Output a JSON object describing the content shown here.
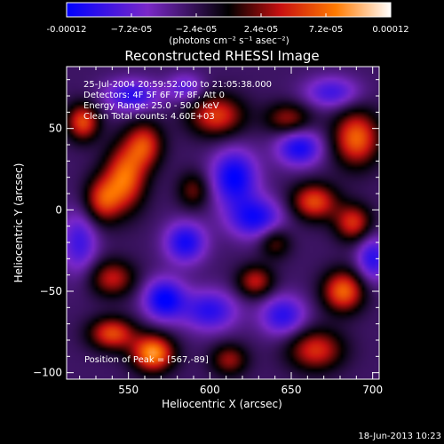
{
  "colorbar": {
    "tick_labels": [
      "-0.00012",
      "−7.2e-05",
      "−2.4e-05",
      "2.4e-05",
      "7.2e-05",
      "0.00012"
    ],
    "tick_values": [
      -0.00012,
      -7.2e-05,
      -2.4e-05,
      2.4e-05,
      7.2e-05,
      0.00012
    ],
    "range": [
      -0.00012,
      0.00012
    ],
    "unit_label": "(photons cm⁻² s⁻¹ asec⁻²)",
    "colormap": [
      "#0000ff",
      "#7a28c8",
      "#000000",
      "#c81010",
      "#ff7a00",
      "#ffffff"
    ]
  },
  "chart_data": {
    "type": "heatmap",
    "title": "Reconstructed RHESSI Image",
    "xlabel": "Heliocentric X (arcsec)",
    "ylabel": "Heliocentric Y (arcsec)",
    "xlim": [
      512,
      704
    ],
    "ylim": [
      -104,
      88
    ],
    "x_ticks": [
      550,
      600,
      650,
      700
    ],
    "y_ticks": [
      -100,
      -50,
      0,
      50
    ],
    "x_tick_labels": [
      "550",
      "600",
      "650",
      "700"
    ],
    "y_tick_labels": [
      "−100",
      "−50",
      "0",
      "50"
    ],
    "annotations": [
      "25-Jul-2004 20:59:52.000 to 21:05:38.000",
      "Detectors: 4F 5F 6F 7F 8F, Att 0",
      "Energy Range: 25.0 - 50.0 keV",
      "Clean    Total counts: 4.60E+03"
    ],
    "peak_label": "Position of Peak = [567,-89]",
    "peak": [
      567,
      -89
    ],
    "blobs": [
      {
        "x": 565,
        "y": -88,
        "sx": 9,
        "sy": 8,
        "v": 0.000118
      },
      {
        "x": 540,
        "y": -76,
        "sx": 10,
        "sy": 7,
        "v": 9e-05
      },
      {
        "x": 548,
        "y": 20,
        "sx": 9,
        "sy": 14,
        "v": 0.0001
      },
      {
        "x": 560,
        "y": 40,
        "sx": 8,
        "sy": 10,
        "v": 8e-05
      },
      {
        "x": 534,
        "y": 6,
        "sx": 8,
        "sy": 10,
        "v": 8e-05
      },
      {
        "x": 522,
        "y": 54,
        "sx": 7,
        "sy": 8,
        "v": 9e-05
      },
      {
        "x": 604,
        "y": 58,
        "sx": 12,
        "sy": 9,
        "v": 8.5e-05
      },
      {
        "x": 648,
        "y": 56,
        "sx": 10,
        "sy": 7,
        "v": 6e-05
      },
      {
        "x": 690,
        "y": 44,
        "sx": 10,
        "sy": 12,
        "v": 0.0001
      },
      {
        "x": 664,
        "y": 5,
        "sx": 10,
        "sy": 8,
        "v": 9e-05
      },
      {
        "x": 688,
        "y": -8,
        "sx": 8,
        "sy": 8,
        "v": 8e-05
      },
      {
        "x": 628,
        "y": -44,
        "sx": 8,
        "sy": 7,
        "v": 7e-05
      },
      {
        "x": 682,
        "y": -50,
        "sx": 9,
        "sy": 9,
        "v": 0.0001
      },
      {
        "x": 665,
        "y": -86,
        "sx": 12,
        "sy": 9,
        "v": 8e-05
      },
      {
        "x": 612,
        "y": -92,
        "sx": 8,
        "sy": 7,
        "v": 6e-05
      },
      {
        "x": 540,
        "y": -42,
        "sx": 10,
        "sy": 8,
        "v": 7e-05
      },
      {
        "x": 590,
        "y": 12,
        "sx": 7,
        "sy": 8,
        "v": 5e-05
      },
      {
        "x": 640,
        "y": -20,
        "sx": 7,
        "sy": 7,
        "v": 5e-05
      },
      {
        "x": 585,
        "y": -20,
        "sx": 9,
        "sy": 9,
        "v": -8e-05
      },
      {
        "x": 615,
        "y": 20,
        "sx": 10,
        "sy": 12,
        "v": -9e-05
      },
      {
        "x": 628,
        "y": -5,
        "sx": 12,
        "sy": 9,
        "v": -8e-05
      },
      {
        "x": 600,
        "y": -62,
        "sx": 12,
        "sy": 9,
        "v": -7e-05
      },
      {
        "x": 572,
        "y": -55,
        "sx": 9,
        "sy": 9,
        "v": -9e-05
      },
      {
        "x": 655,
        "y": 38,
        "sx": 10,
        "sy": 8,
        "v": -8e-05
      },
      {
        "x": 645,
        "y": -65,
        "sx": 10,
        "sy": 9,
        "v": -7e-05
      },
      {
        "x": 552,
        "y": 70,
        "sx": 12,
        "sy": 7,
        "v": -7e-05
      },
      {
        "x": 675,
        "y": 72,
        "sx": 12,
        "sy": 7,
        "v": -6e-05
      },
      {
        "x": 700,
        "y": -30,
        "sx": 7,
        "sy": 10,
        "v": -7e-05
      },
      {
        "x": 520,
        "y": -20,
        "sx": 8,
        "sy": 14,
        "v": -6e-05
      },
      {
        "x": 585,
        "y": 75,
        "sx": 8,
        "sy": 6,
        "v": -5e-05
      }
    ]
  },
  "footer": {
    "date": "18-Jun-2013 10:23"
  }
}
